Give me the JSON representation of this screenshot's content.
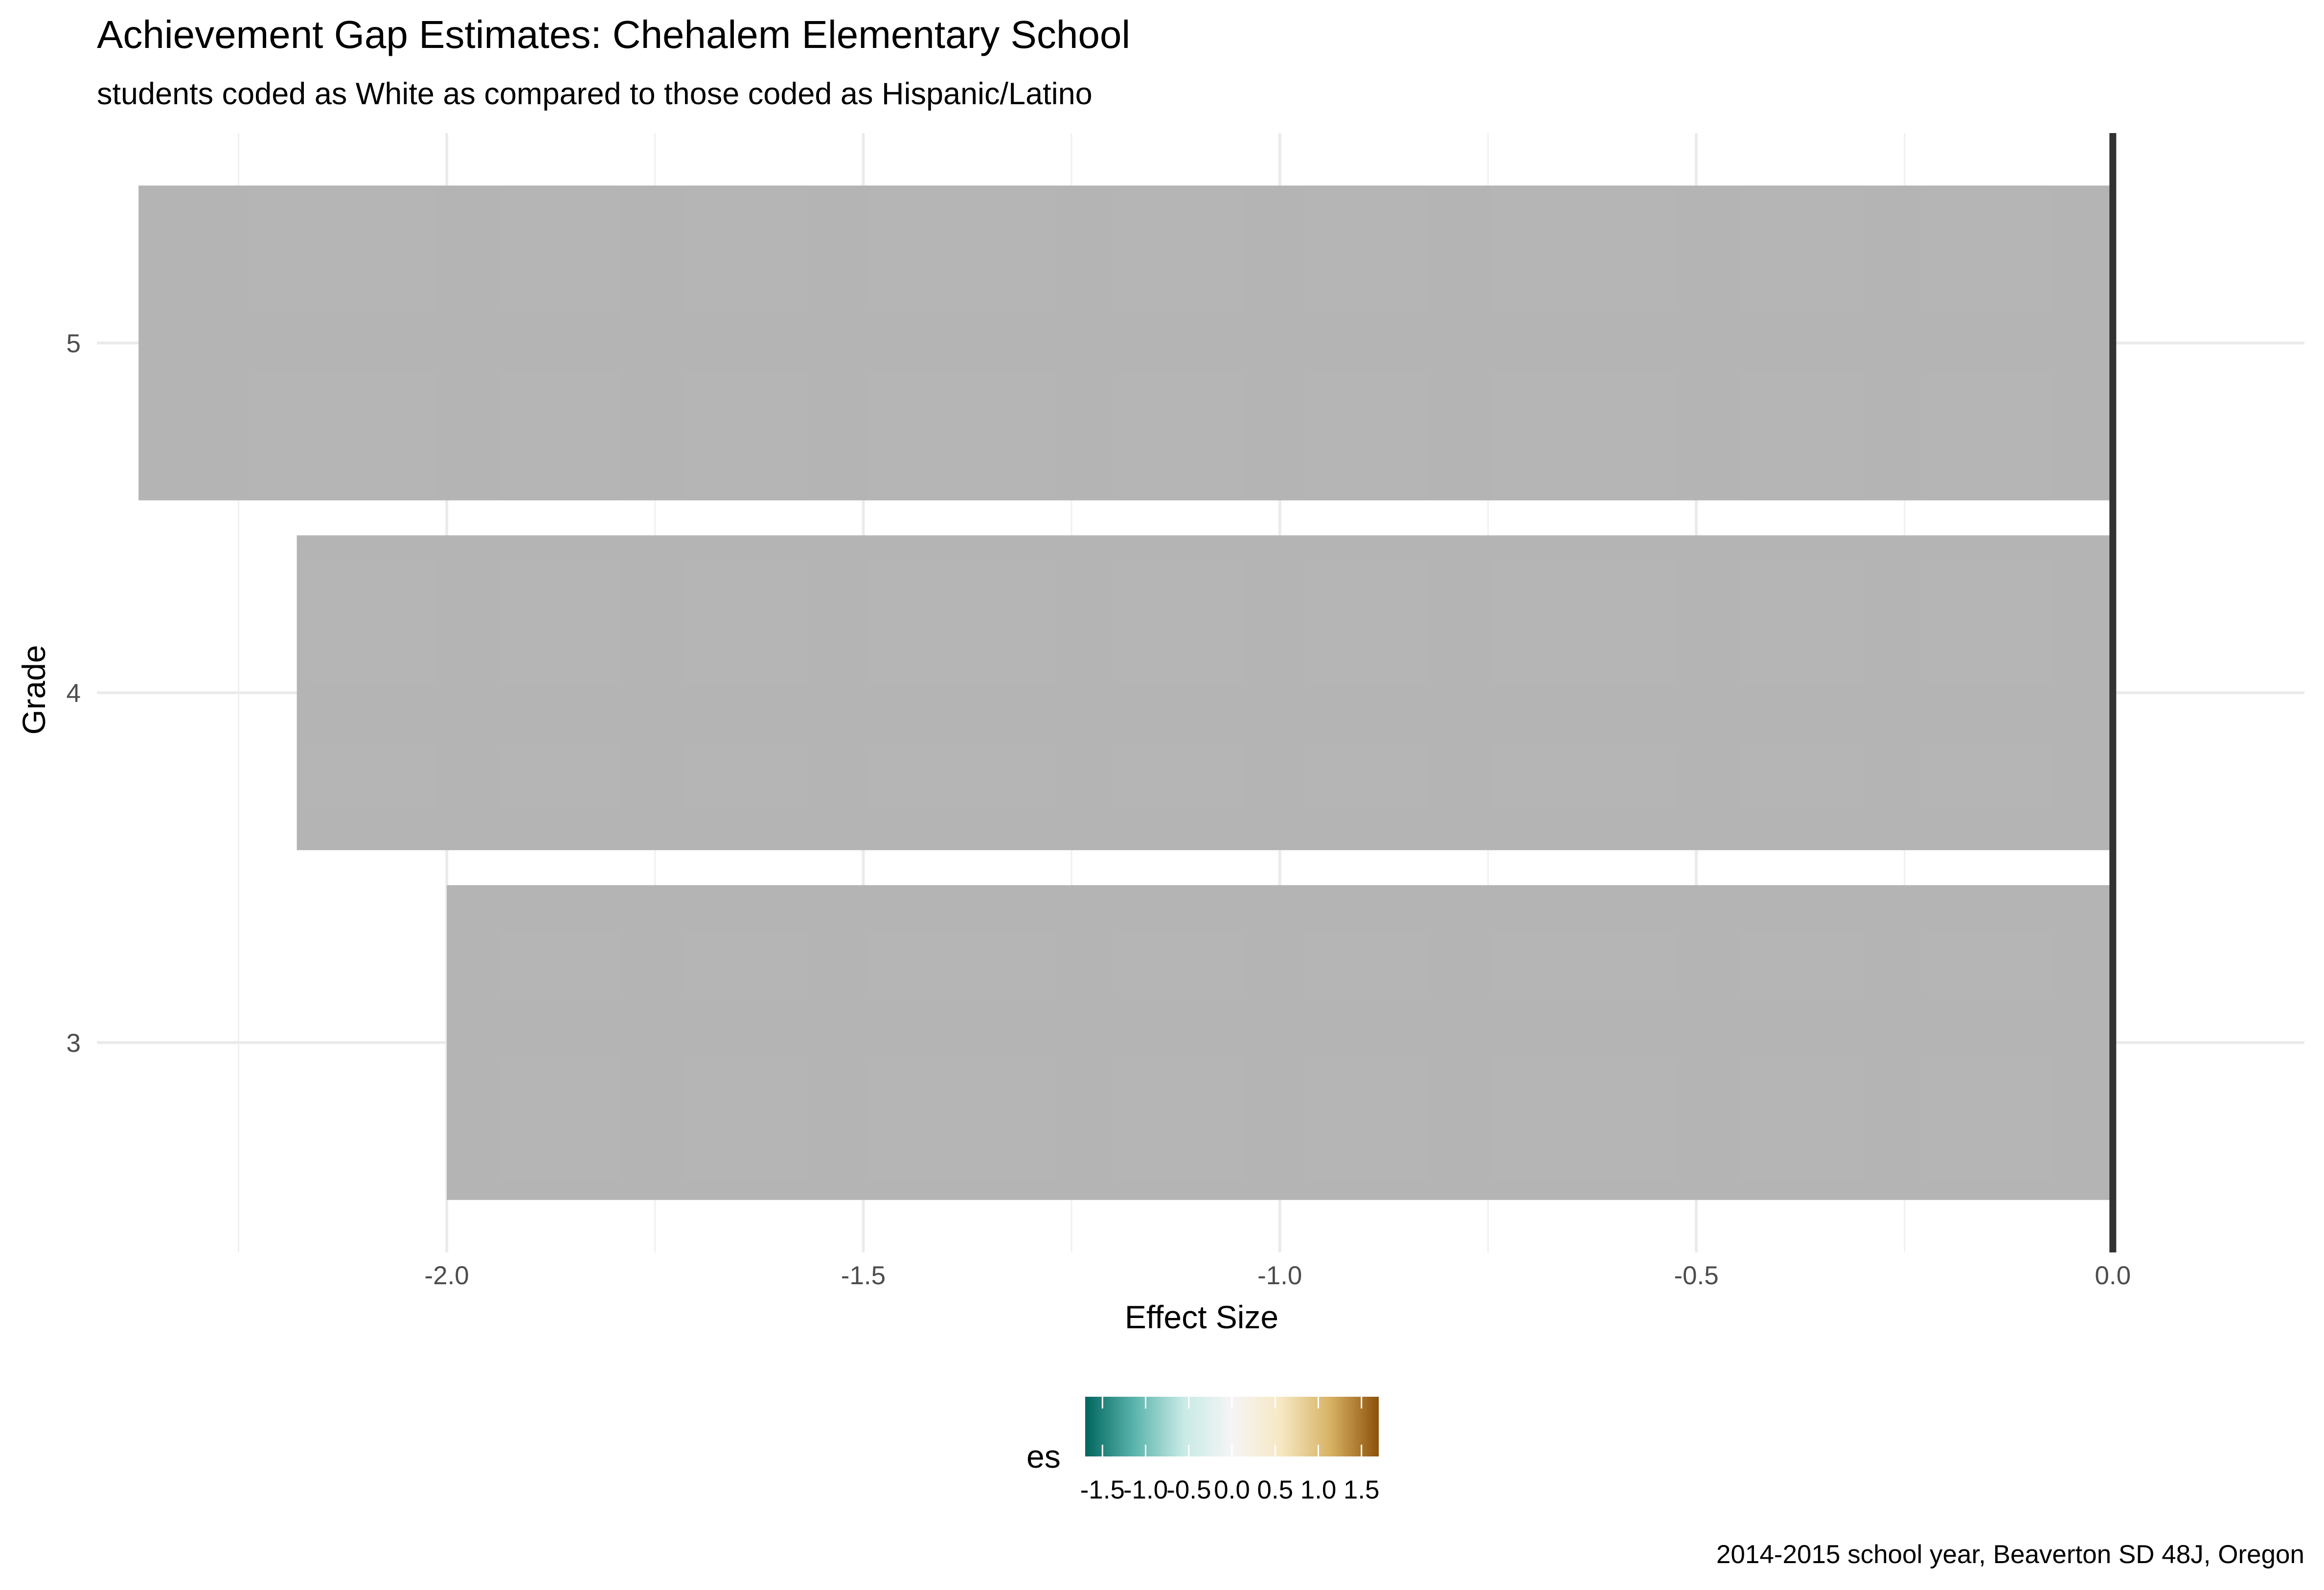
{
  "chart_data": {
    "type": "bar",
    "orientation": "horizontal",
    "title": "Achievement Gap Estimates: Chehalem Elementary School",
    "subtitle": "students coded as White as compared to those coded as Hispanic/Latino",
    "xlabel": "Effect Size",
    "ylabel": "Grade",
    "caption": "2014-2015 school year, Beaverton SD 48J, Oregon",
    "categories": [
      "3",
      "4",
      "5"
    ],
    "values": [
      -2.0,
      -2.18,
      -2.37
    ],
    "xlim": [
      -2.42,
      0.23
    ],
    "x_ticks": [
      -2.0,
      -1.5,
      -1.0,
      -0.5,
      0.0
    ],
    "x_tick_labels": [
      "-2.0",
      "-1.5",
      "-1.0",
      "-0.5",
      "0.0"
    ],
    "grid": true,
    "reference_line_x": 0.0,
    "bar_color": "#b3b3b3",
    "legend": {
      "title": "es",
      "position": "bottom",
      "type": "colorbar",
      "range": [
        -1.7,
        1.7
      ],
      "ticks": [
        -1.5,
        -1.0,
        -0.5,
        0.0,
        0.5,
        1.0,
        1.5
      ],
      "tick_labels": [
        "-1.5",
        "-1.0",
        "-0.5",
        "0.0",
        "0.5",
        "1.0",
        "1.5"
      ],
      "colors": [
        "#01665e",
        "#5ab4ac",
        "#c7eae5",
        "#f5f5f5",
        "#f6e8c3",
        "#d8b365",
        "#8c510a"
      ]
    }
  }
}
